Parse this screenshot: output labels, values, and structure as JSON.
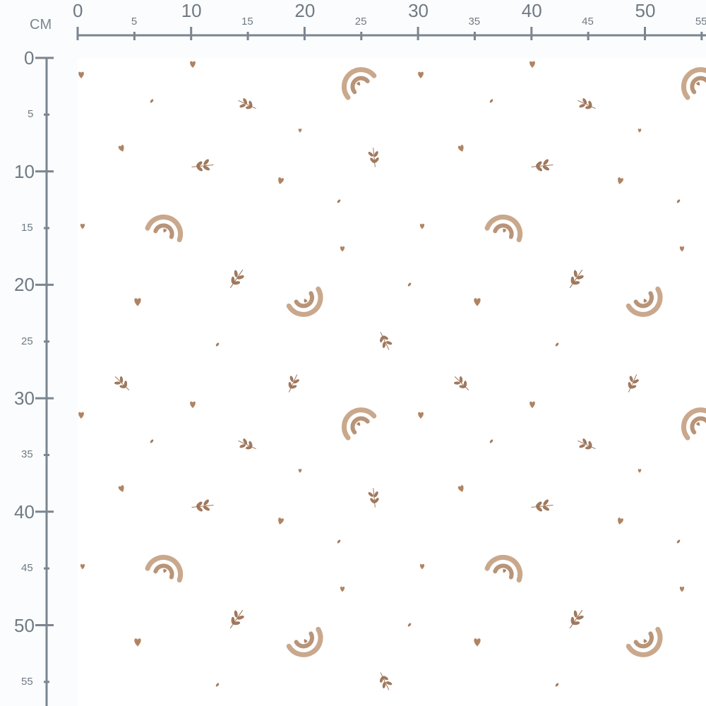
{
  "ruler": {
    "unit": "CM",
    "horizontal_labels": [
      "0",
      "5",
      "10",
      "15",
      "20",
      "25",
      "30",
      "35",
      "40",
      "45",
      "50",
      "55"
    ],
    "vertical_labels": [
      "0",
      "5",
      "10",
      "15",
      "20",
      "25",
      "30",
      "35",
      "40",
      "45",
      "50",
      "55"
    ],
    "color": "#7a8590"
  },
  "fabric": {
    "background": "#ffffff",
    "motif_color": "#b08463",
    "motifs": [
      "heart",
      "rainbow",
      "leaf-sprig",
      "dot"
    ]
  }
}
